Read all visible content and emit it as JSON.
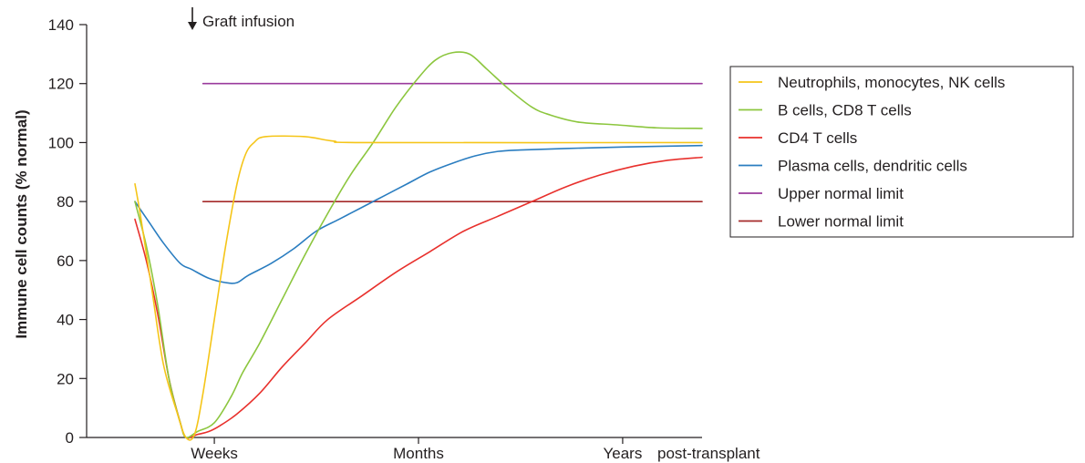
{
  "chart_data": {
    "type": "line",
    "title": "",
    "ylabel": "Immune cell counts (% normal)",
    "xlabel": "post-transplant",
    "ylim": [
      0,
      140
    ],
    "y_ticks": [
      0,
      20,
      40,
      60,
      80,
      100,
      120,
      140
    ],
    "x_range": [
      0,
      100
    ],
    "x_ticks": [
      {
        "label": "Weeks",
        "x": 14
      },
      {
        "label": "Months",
        "x": 50
      },
      {
        "label": "Years",
        "x": 86
      }
    ],
    "annotation": {
      "label": "Graft infusion",
      "x": 12
    },
    "grid": false,
    "legend_position": "right",
    "series": [
      {
        "name": "Neutrophils, monocytes, NK cells",
        "color": "#f5c518",
        "points": [
          [
            0,
            86
          ],
          [
            1,
            75
          ],
          [
            3,
            50
          ],
          [
            5,
            25
          ],
          [
            7.5,
            8
          ],
          [
            9,
            0
          ],
          [
            10.5,
            1
          ],
          [
            12,
            15
          ],
          [
            14,
            40
          ],
          [
            16,
            65
          ],
          [
            18,
            86
          ],
          [
            19.5,
            96
          ],
          [
            21,
            100
          ],
          [
            23,
            102
          ],
          [
            30,
            102
          ],
          [
            35,
            100.5
          ],
          [
            42,
            100
          ],
          [
            100,
            100
          ]
        ]
      },
      {
        "name": "B cells, CD8 T cells",
        "color": "#8cc63e",
        "points": [
          [
            0,
            80
          ],
          [
            2,
            65
          ],
          [
            4,
            45
          ],
          [
            6,
            20
          ],
          [
            8,
            5
          ],
          [
            9,
            0
          ],
          [
            11,
            2
          ],
          [
            14,
            5
          ],
          [
            17,
            14
          ],
          [
            19,
            22
          ],
          [
            22,
            32
          ],
          [
            26,
            47
          ],
          [
            30,
            62
          ],
          [
            34,
            76
          ],
          [
            38,
            89
          ],
          [
            42,
            100
          ],
          [
            46,
            112
          ],
          [
            50,
            122
          ],
          [
            53,
            128
          ],
          [
            56,
            130.5
          ],
          [
            59,
            130
          ],
          [
            62,
            125
          ],
          [
            66,
            118
          ],
          [
            70,
            112
          ],
          [
            73,
            109.5
          ],
          [
            78,
            107
          ],
          [
            85,
            106
          ],
          [
            92,
            105
          ],
          [
            100,
            104.8
          ]
        ]
      },
      {
        "name": "CD4 T cells",
        "color": "#e8302c",
        "points": [
          [
            0,
            74
          ],
          [
            2,
            60
          ],
          [
            4,
            42
          ],
          [
            6,
            20
          ],
          [
            8,
            5
          ],
          [
            9,
            0
          ],
          [
            11,
            1
          ],
          [
            13,
            2
          ],
          [
            15,
            4
          ],
          [
            18,
            8
          ],
          [
            22,
            15
          ],
          [
            26,
            24
          ],
          [
            30,
            32
          ],
          [
            34,
            40
          ],
          [
            40,
            48
          ],
          [
            46,
            56
          ],
          [
            52,
            63
          ],
          [
            58,
            70
          ],
          [
            64,
            75
          ],
          [
            70,
            80
          ],
          [
            76,
            85
          ],
          [
            82,
            89
          ],
          [
            88,
            92
          ],
          [
            94,
            94
          ],
          [
            100,
            95
          ]
        ]
      },
      {
        "name": "Plasma cells, dendritic cells",
        "color": "#2a7dc0",
        "points": [
          [
            0,
            80
          ],
          [
            2.5,
            73
          ],
          [
            5,
            66
          ],
          [
            8,
            59
          ],
          [
            10,
            57
          ],
          [
            13,
            54
          ],
          [
            16,
            52.5
          ],
          [
            18,
            52.5
          ],
          [
            20,
            55
          ],
          [
            24,
            59
          ],
          [
            28,
            64
          ],
          [
            32,
            70
          ],
          [
            36,
            74
          ],
          [
            40,
            78
          ],
          [
            44,
            82
          ],
          [
            48,
            86
          ],
          [
            52,
            90
          ],
          [
            56,
            93
          ],
          [
            60,
            95.5
          ],
          [
            64,
            97
          ],
          [
            68,
            97.5
          ],
          [
            76,
            98
          ],
          [
            86,
            98.5
          ],
          [
            100,
            99
          ]
        ]
      },
      {
        "name": "Upper normal limit",
        "color": "#9a3a9c",
        "points": [
          [
            12,
            120
          ],
          [
            100,
            120
          ]
        ]
      },
      {
        "name": "Lower normal limit",
        "color": "#a52a2a",
        "points": [
          [
            12,
            80
          ],
          [
            100,
            80
          ]
        ]
      }
    ]
  }
}
